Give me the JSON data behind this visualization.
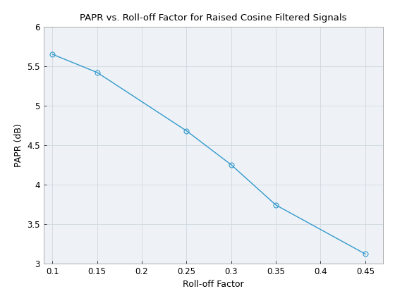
{
  "title": "PAPR vs. Roll-off Factor for Raised Cosine Filtered Signals",
  "xlabel": "Roll-off Factor",
  "ylabel": "PAPR (dB)",
  "x": [
    0.1,
    0.15,
    0.25,
    0.3,
    0.35,
    0.45
  ],
  "y": [
    5.65,
    5.42,
    4.68,
    4.25,
    3.74,
    3.12
  ],
  "line_color": "#3399CC",
  "marker": "o",
  "marker_facecolor": "none",
  "marker_edgecolor": "#3399CC",
  "linewidth": 1.0,
  "markersize": 5,
  "xlim": [
    0.09,
    0.47
  ],
  "ylim": [
    3.0,
    6.0
  ],
  "xticks": [
    0.1,
    0.15,
    0.2,
    0.25,
    0.3,
    0.35,
    0.4,
    0.45
  ],
  "yticks": [
    3.0,
    3.5,
    4.0,
    4.5,
    5.0,
    5.5,
    6.0
  ],
  "grid_color": "#D0D8E0",
  "grid_linewidth": 0.6,
  "title_fontsize": 9.5,
  "label_fontsize": 9,
  "tick_fontsize": 8.5,
  "axes_facecolor": "#EEF2F7",
  "figure_facecolor": "#FFFFFF"
}
